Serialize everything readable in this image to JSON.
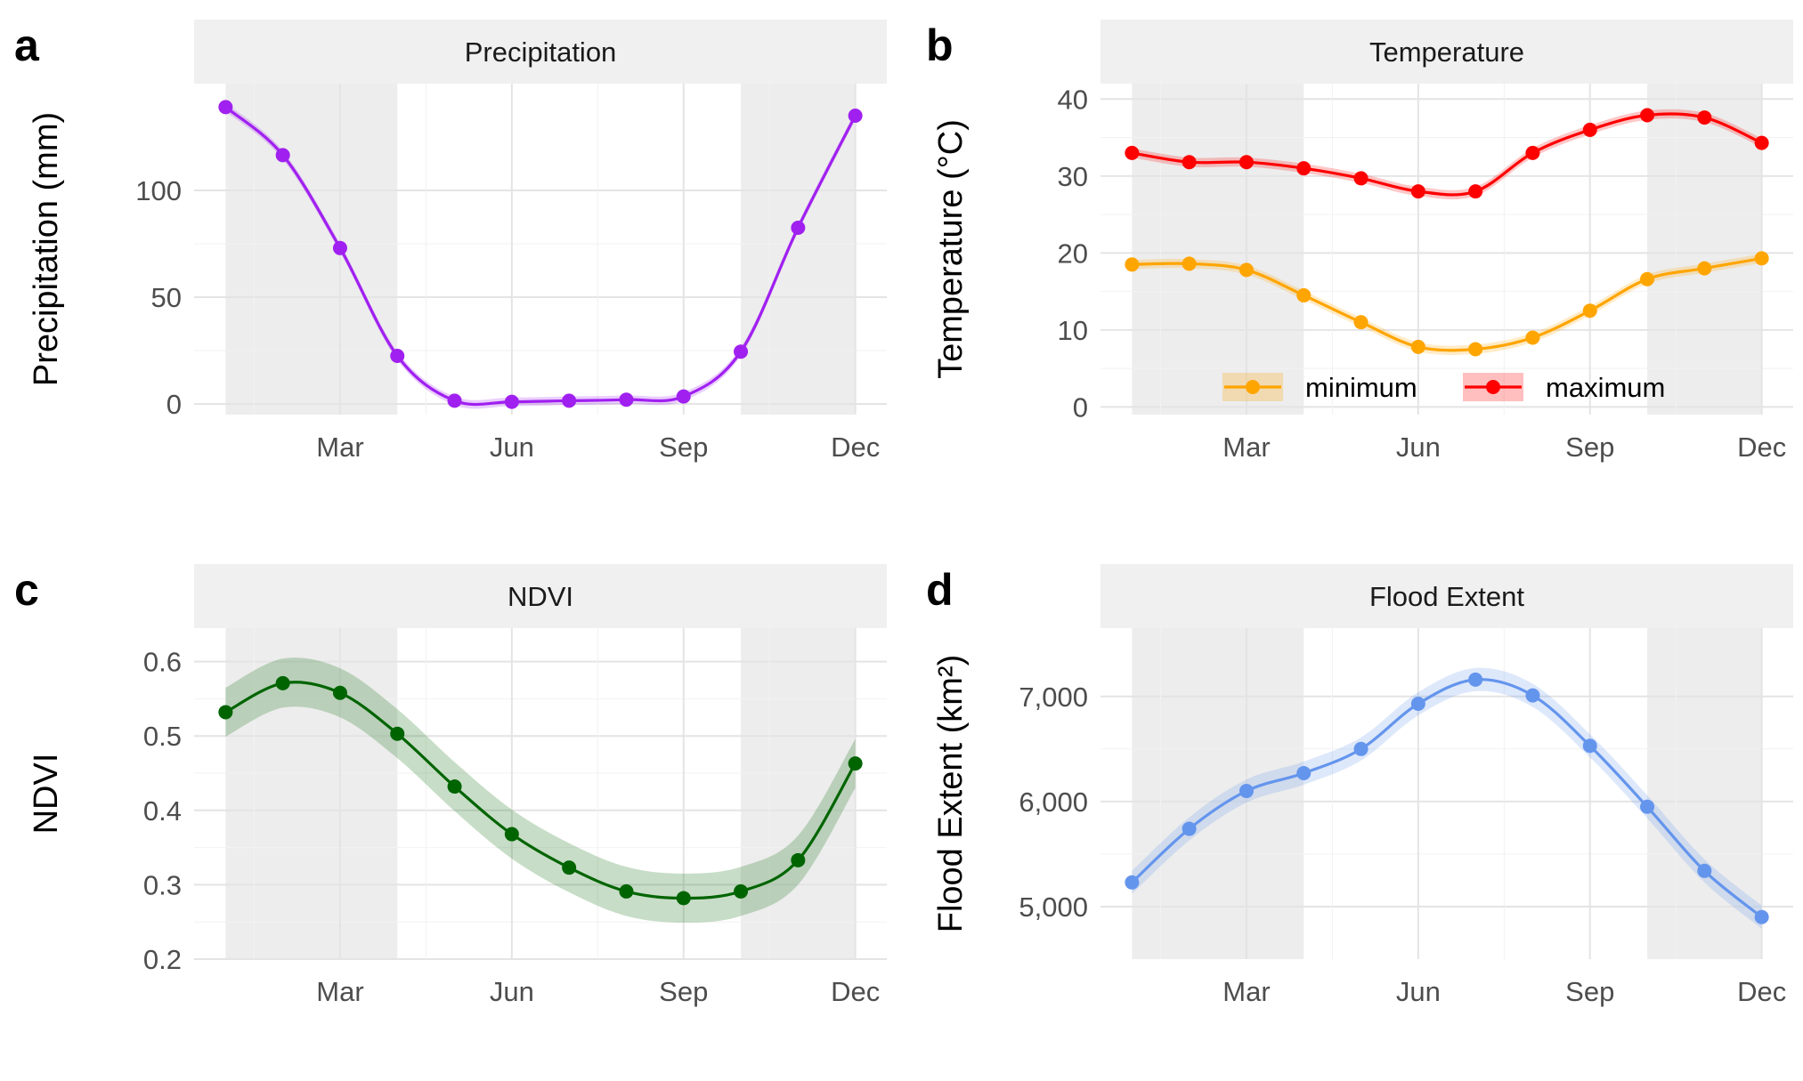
{
  "figure": {
    "x_ticks": [
      "Mar",
      "Jun",
      "Sep",
      "Dec"
    ]
  },
  "chart_data": [
    {
      "panel_letter": "a",
      "strip": "Precipitation",
      "type": "line",
      "ylabel": "Precipitation (mm)",
      "ylim": [
        -5,
        150
      ],
      "y_ticks": [
        0,
        50,
        100
      ],
      "y_tick_labels": [
        "0",
        "50",
        "100"
      ],
      "x": [
        1,
        2,
        3,
        4,
        5,
        6,
        7,
        8,
        9,
        10,
        11,
        12
      ],
      "x_tick_positions": [
        3,
        6,
        9,
        12
      ],
      "shaded_months": [
        [
          1,
          4
        ],
        [
          10,
          12
        ]
      ],
      "series": [
        {
          "key": "precip",
          "color": "#a020f0",
          "band": 2,
          "values": [
            139,
            116.5,
            73,
            22.5,
            1.5,
            1,
            1.5,
            2,
            3.5,
            24.5,
            82.5,
            135
          ]
        }
      ]
    },
    {
      "panel_letter": "b",
      "strip": "Temperature",
      "type": "line",
      "ylabel": "Temperature (°C)",
      "ylim": [
        -1,
        42
      ],
      "y_ticks": [
        0,
        10,
        20,
        30,
        40
      ],
      "y_tick_labels": [
        "0",
        "10",
        "20",
        "30",
        "40"
      ],
      "x": [
        1,
        2,
        3,
        4,
        5,
        6,
        7,
        8,
        9,
        10,
        11,
        12
      ],
      "x_tick_positions": [
        3,
        6,
        9,
        12
      ],
      "shaded_months": [
        [
          1,
          4
        ],
        [
          10,
          12
        ]
      ],
      "legend_position": "bottom-right",
      "series": [
        {
          "key": "minimum",
          "name": "minimum",
          "color": "#ffa500",
          "band": 0.6,
          "values": [
            18.5,
            18.6,
            17.8,
            14.5,
            11,
            7.8,
            7.5,
            9,
            12.5,
            16.6,
            18,
            19.3
          ]
        },
        {
          "key": "maximum",
          "name": "maximum",
          "color": "#ff0000",
          "band": 0.6,
          "values": [
            33,
            31.8,
            31.8,
            31,
            29.7,
            28,
            28,
            33,
            36,
            37.9,
            37.6,
            34.3
          ]
        }
      ]
    },
    {
      "panel_letter": "c",
      "strip": "NDVI",
      "type": "line",
      "ylabel": "NDVI",
      "ylim": [
        0.2,
        0.645
      ],
      "y_ticks": [
        0.2,
        0.3,
        0.4,
        0.5,
        0.6
      ],
      "y_tick_labels": [
        "0.2",
        "0.3",
        "0.4",
        "0.5",
        "0.6"
      ],
      "x": [
        1,
        2,
        3,
        4,
        5,
        6,
        7,
        8,
        9,
        10,
        11,
        12
      ],
      "x_tick_positions": [
        3,
        6,
        9,
        12
      ],
      "shaded_months": [
        [
          1,
          4
        ],
        [
          10,
          12
        ]
      ],
      "series": [
        {
          "key": "ndvi",
          "color": "#006400",
          "band": 0.033,
          "values": [
            0.532,
            0.571,
            0.558,
            0.503,
            0.432,
            0.368,
            0.323,
            0.291,
            0.282,
            0.291,
            0.333,
            0.463
          ]
        }
      ]
    },
    {
      "panel_letter": "d",
      "strip": "Flood Extent",
      "type": "line",
      "ylabel": "Flood Extent (km²)",
      "ylim": [
        4500,
        7650
      ],
      "y_ticks": [
        5000,
        6000,
        7000
      ],
      "y_tick_labels": [
        "5,000",
        "6,000",
        "7,000"
      ],
      "x": [
        1,
        2,
        3,
        4,
        5,
        6,
        7,
        8,
        9,
        10,
        11,
        12
      ],
      "x_tick_positions": [
        3,
        6,
        9,
        12
      ],
      "shaded_months": [
        [
          1,
          4
        ],
        [
          10,
          12
        ]
      ],
      "series": [
        {
          "key": "flood",
          "color": "#6495ed",
          "band": 110,
          "values": [
            5230,
            5740,
            6100,
            6270,
            6500,
            6930,
            7160,
            7010,
            6530,
            5950,
            5340,
            4900
          ]
        }
      ]
    }
  ]
}
